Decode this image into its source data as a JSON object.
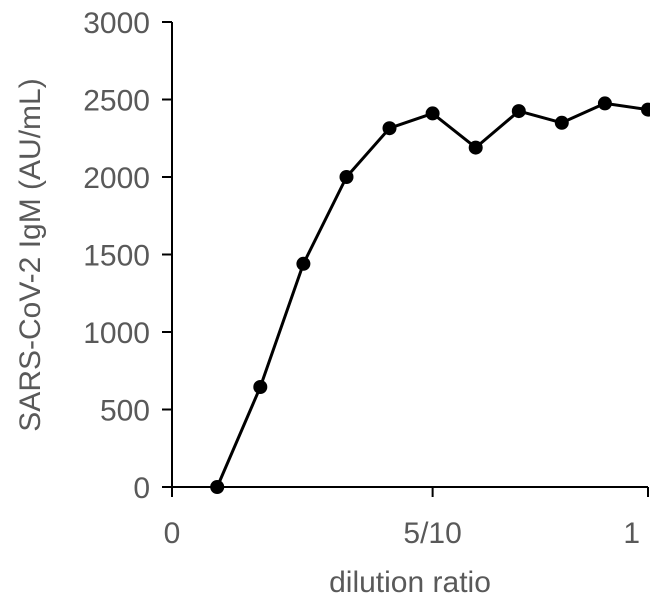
{
  "chart_data": {
    "type": "line",
    "title": "",
    "xlabel": "dilution ratio",
    "ylabel": "SARS-CoV-2 IgM (AU/mL)",
    "x": [
      0,
      0.1,
      0.2,
      0.3,
      0.4,
      0.5,
      0.6,
      0.7,
      0.8,
      0.9,
      1.0
    ],
    "series": [
      {
        "values": [
          0,
          645,
          1440,
          2000,
          2315,
          2410,
          2190,
          2425,
          2350,
          2475,
          2435
        ]
      }
    ],
    "xlim": [
      -0.105,
      1.0
    ],
    "ylim": [
      0,
      3000
    ],
    "x_ticks": [
      {
        "value": -0.105,
        "label": "0"
      },
      {
        "value": 0.5,
        "label": "5/10"
      },
      {
        "value": 1.0,
        "label": "1"
      }
    ],
    "y_ticks": [
      {
        "value": 0,
        "label": "0"
      },
      {
        "value": 500,
        "label": "500"
      },
      {
        "value": 1000,
        "label": "1000"
      },
      {
        "value": 1500,
        "label": "1500"
      },
      {
        "value": 2000,
        "label": "2000"
      },
      {
        "value": 2500,
        "label": "2500"
      },
      {
        "value": 3000,
        "label": "3000"
      }
    ],
    "grid": false,
    "legend": "none",
    "colors": {
      "line": "#000000",
      "marker": "#000000",
      "axis": "#000000",
      "text": "#595959"
    }
  }
}
